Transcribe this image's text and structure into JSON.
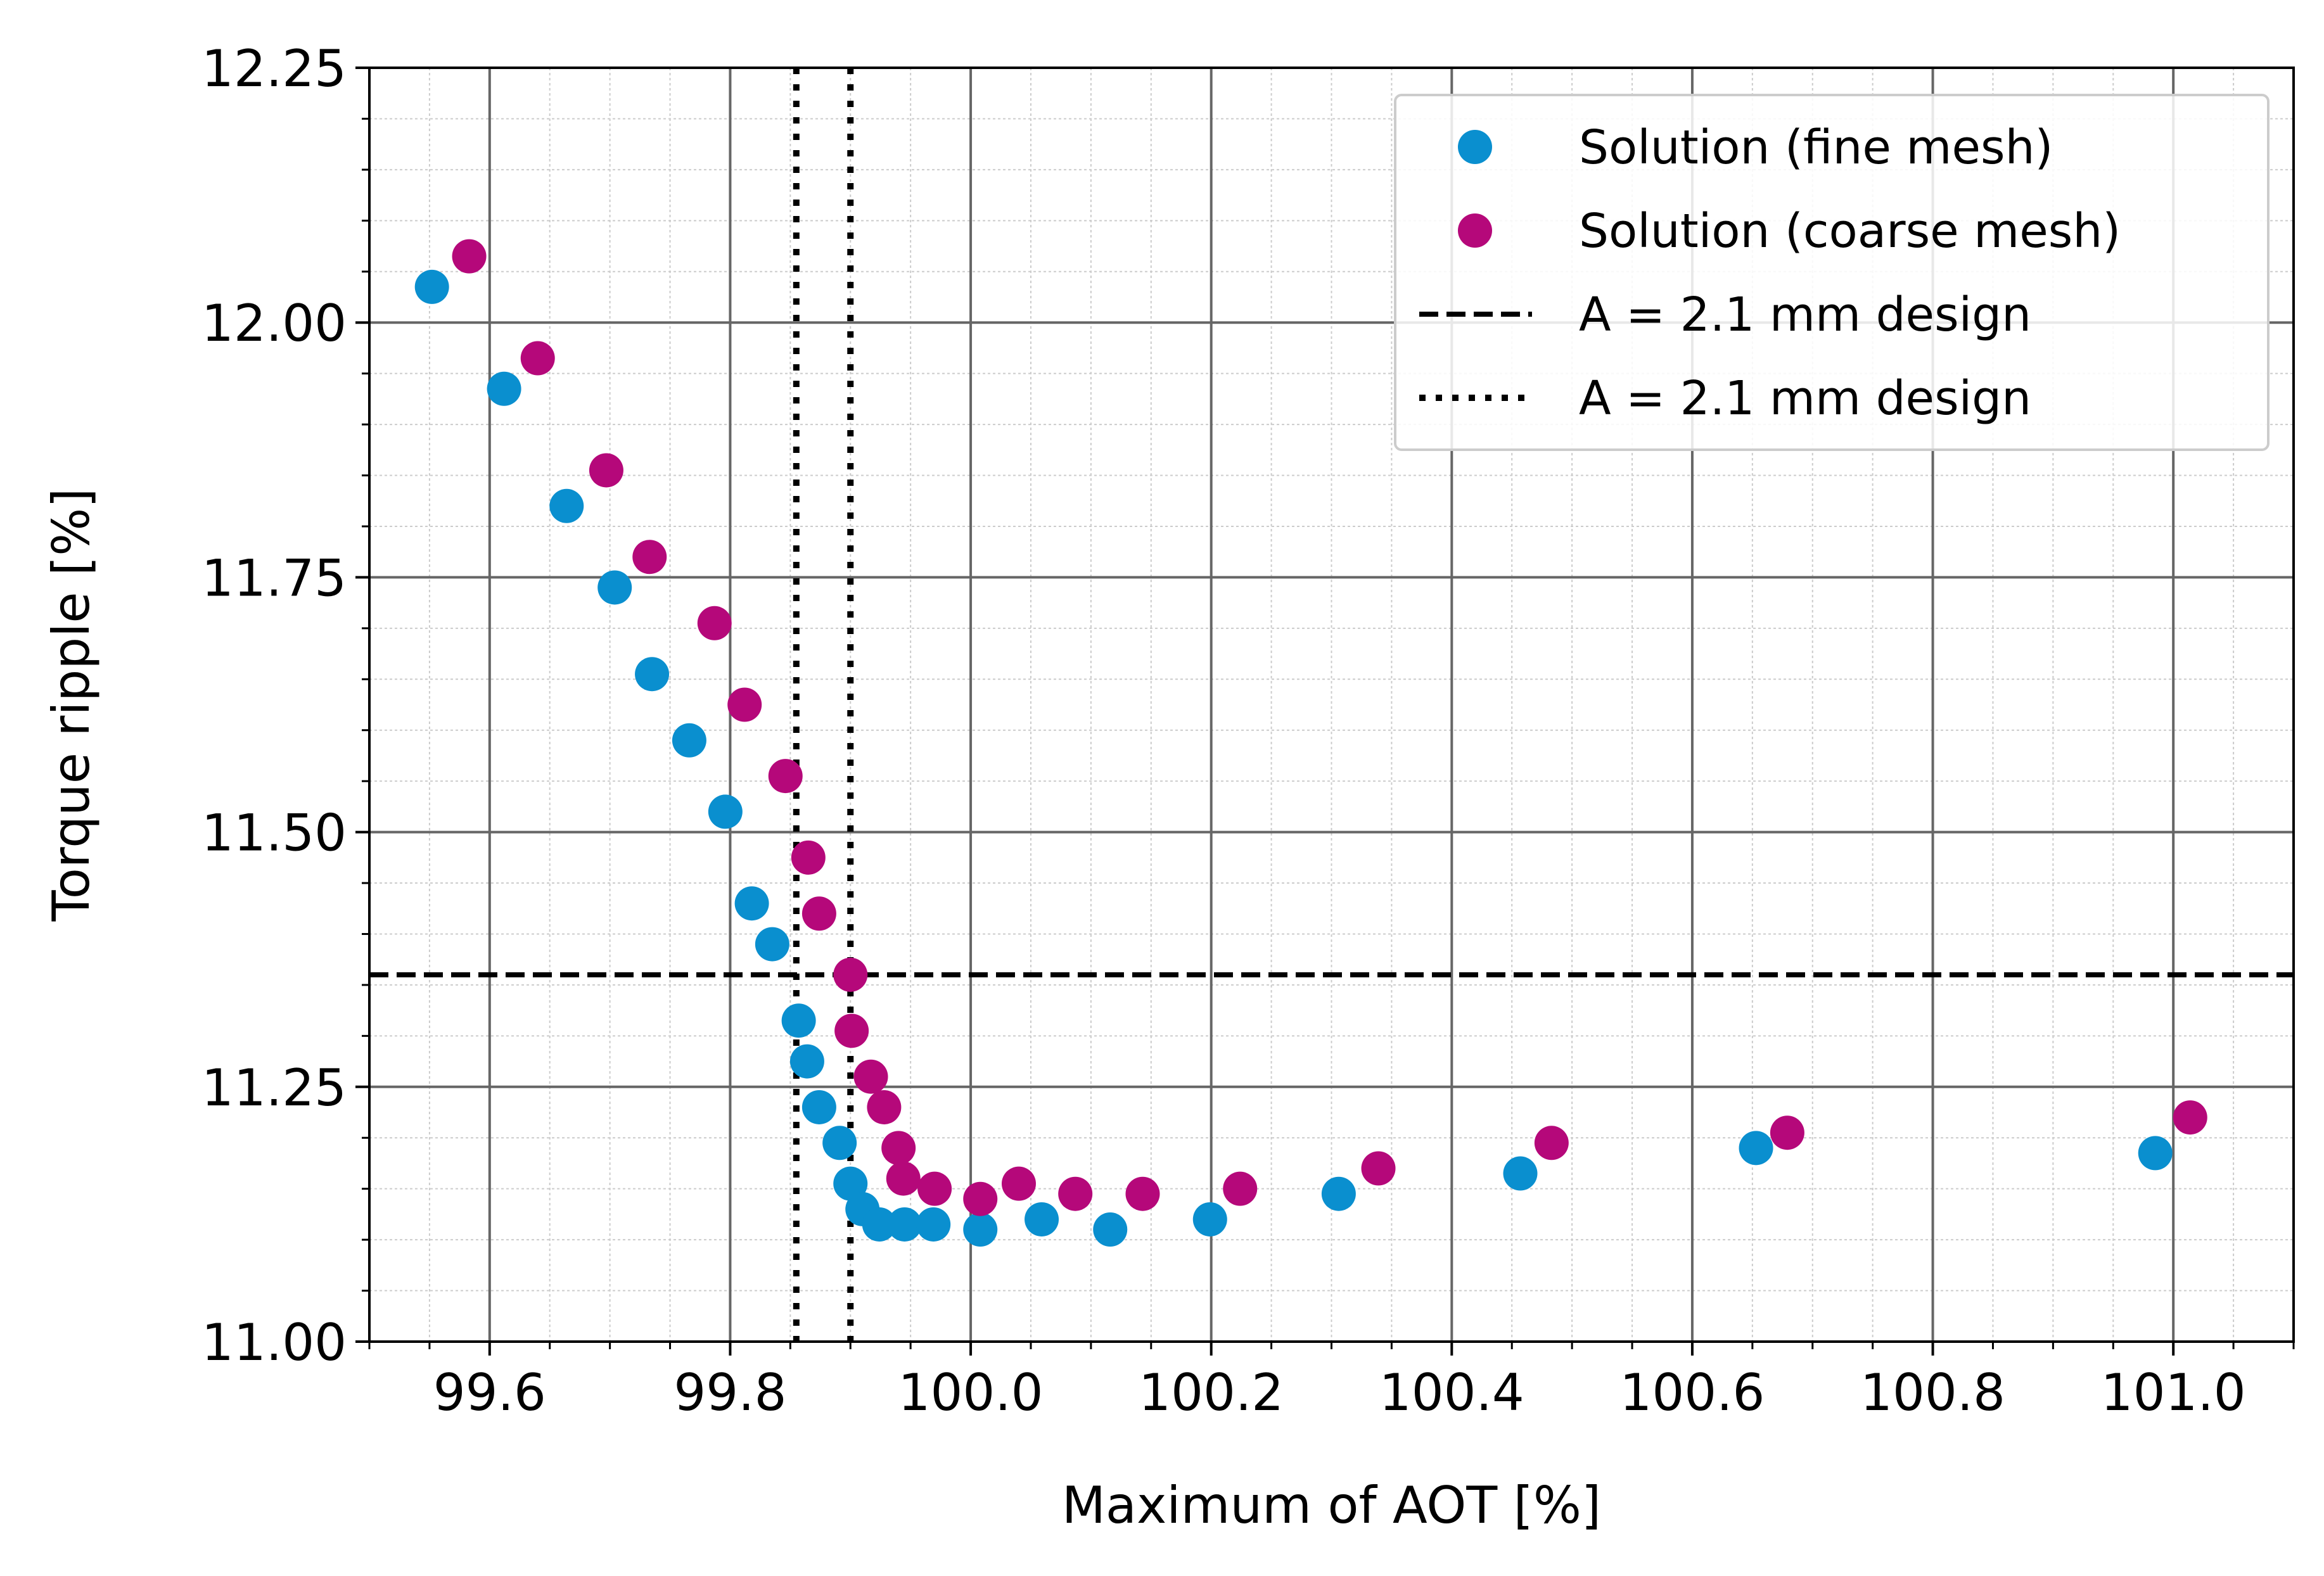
{
  "chart_data": {
    "type": "scatter",
    "title": "",
    "xlabel": "Maximum of AOT [%]",
    "ylabel": "Torque ripple [%]",
    "xlim": [
      99.5,
      101.1
    ],
    "ylim": [
      11.0,
      12.25
    ],
    "xticks": [
      99.6,
      99.8,
      100.0,
      100.2,
      100.4,
      100.6,
      100.8,
      101.0
    ],
    "xtick_labels": [
      "99.6",
      "99.8",
      "100.0",
      "100.2",
      "100.4",
      "100.6",
      "100.8",
      "101.0"
    ],
    "yticks": [
      11.0,
      11.25,
      11.5,
      11.75,
      12.0,
      12.25
    ],
    "ytick_labels": [
      "11.00",
      "11.25",
      "11.50",
      "11.75",
      "12.00",
      "12.25"
    ],
    "x_minor_step": 0.05,
    "y_minor_step": 0.05,
    "grid": {
      "major": true,
      "minor": true
    },
    "legend_position": "top-right",
    "series": [
      {
        "name": "Solution (fine mesh)",
        "kind": "scatter",
        "color": "#0a8fcf",
        "points": [
          [
            99.552,
            12.035
          ],
          [
            99.612,
            11.935
          ],
          [
            99.664,
            11.82
          ],
          [
            99.704,
            11.74
          ],
          [
            99.735,
            11.655
          ],
          [
            99.766,
            11.59
          ],
          [
            99.796,
            11.52
          ],
          [
            99.818,
            11.43
          ],
          [
            99.835,
            11.39
          ],
          [
            99.857,
            11.315
          ],
          [
            99.864,
            11.275
          ],
          [
            99.874,
            11.23
          ],
          [
            99.891,
            11.195
          ],
          [
            99.9,
            11.155
          ],
          [
            99.91,
            11.13
          ],
          [
            99.924,
            11.115
          ],
          [
            99.945,
            11.115
          ],
          [
            99.969,
            11.115
          ],
          [
            100.008,
            11.11
          ],
          [
            100.059,
            11.12
          ],
          [
            100.116,
            11.11
          ],
          [
            100.199,
            11.12
          ],
          [
            100.306,
            11.145
          ],
          [
            100.457,
            11.165
          ],
          [
            100.653,
            11.19
          ],
          [
            100.985,
            11.185
          ]
        ]
      },
      {
        "name": "Solution (coarse mesh)",
        "kind": "scatter",
        "color": "#b5087a",
        "points": [
          [
            99.583,
            12.065
          ],
          [
            99.64,
            11.965
          ],
          [
            99.697,
            11.855
          ],
          [
            99.733,
            11.77
          ],
          [
            99.787,
            11.705
          ],
          [
            99.812,
            11.625
          ],
          [
            99.846,
            11.555
          ],
          [
            99.865,
            11.475
          ],
          [
            99.874,
            11.42
          ],
          [
            99.9,
            11.36
          ],
          [
            99.901,
            11.305
          ],
          [
            99.917,
            11.26
          ],
          [
            99.928,
            11.23
          ],
          [
            99.94,
            11.19
          ],
          [
            99.944,
            11.16
          ],
          [
            99.97,
            11.15
          ],
          [
            100.008,
            11.14
          ],
          [
            100.04,
            11.155
          ],
          [
            100.087,
            11.145
          ],
          [
            100.143,
            11.145
          ],
          [
            100.224,
            11.15
          ],
          [
            100.339,
            11.17
          ],
          [
            100.483,
            11.195
          ],
          [
            100.679,
            11.205
          ],
          [
            101.014,
            11.22
          ]
        ]
      },
      {
        "name": "A = 2.1 mm design",
        "kind": "hline",
        "linestyle": "dashed",
        "color": "#000000",
        "y": 11.36
      },
      {
        "name": "A = 2.1 mm design",
        "kind": "vlines",
        "linestyle": "dotted",
        "color": "#000000",
        "x": [
          99.855,
          99.9
        ]
      }
    ]
  }
}
